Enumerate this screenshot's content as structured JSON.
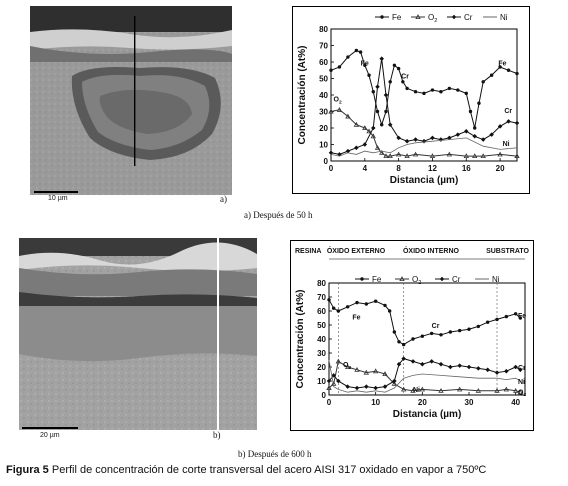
{
  "figure": {
    "number_label": "Figura 5",
    "caption": "Perfil de concentración de corte transversal del acero AISI 317 oxidado en vapor a 750ºC"
  },
  "panel_a": {
    "micrograph": {
      "scale_label": "10 µm",
      "letter": "a)"
    },
    "subcaption": "a) Después de 50 h"
  },
  "panel_b": {
    "micrograph": {
      "scale_label": "20 µm",
      "letter": "b)"
    },
    "subcaption": "b) Después de 600 h",
    "zones": [
      "RESINA",
      "ÓXIDO EXTERNO",
      "ÓXIDO INTERNO",
      "SUBSTRATO"
    ]
  },
  "chart_data": [
    {
      "type": "line",
      "title": "",
      "xlabel": "Distancia (µm)",
      "ylabel": "Concentración (At%)",
      "xlim": [
        0,
        22
      ],
      "ylim": [
        0,
        80
      ],
      "xticks": [
        0,
        4,
        8,
        12,
        16,
        20
      ],
      "yticks": [
        0,
        10,
        20,
        30,
        40,
        50,
        60,
        70,
        80
      ],
      "legend": [
        "Fe",
        "O2",
        "Cr",
        "Ni"
      ],
      "legend_position": "top",
      "grid": false,
      "series": [
        {
          "name": "Fe",
          "color": "#111111",
          "x": [
            0,
            1,
            2,
            3,
            3.5,
            4,
            4.5,
            5,
            5.5,
            6,
            6.5,
            7,
            7.5,
            8,
            8.5,
            9,
            10,
            11,
            12,
            13,
            14,
            15,
            16,
            16.5,
            17,
            17.5,
            18,
            19,
            20,
            21,
            22
          ],
          "values": [
            55,
            57,
            63,
            67,
            66,
            58,
            52,
            42,
            30,
            22,
            30,
            48,
            58,
            56,
            48,
            44,
            42,
            41,
            43,
            42,
            44,
            43,
            41,
            30,
            20,
            35,
            48,
            52,
            57,
            55,
            53
          ]
        },
        {
          "name": "O2",
          "color": "#333333",
          "x": [
            0,
            1,
            2,
            3,
            4,
            4.5,
            5,
            5.5,
            6,
            6.5,
            7,
            8,
            9,
            10,
            12,
            14,
            16,
            17,
            18,
            20,
            22
          ],
          "values": [
            30,
            31,
            27,
            22,
            20,
            18,
            15,
            8,
            5,
            3,
            3,
            4,
            3,
            4,
            3,
            4,
            3,
            3,
            3,
            4,
            3
          ]
        },
        {
          "name": "Cr",
          "color": "#111111",
          "x": [
            0,
            1,
            2,
            3,
            4,
            5,
            5.5,
            6,
            6.5,
            7,
            8,
            9,
            10,
            11,
            12,
            13,
            14,
            15,
            16,
            17,
            18,
            19,
            20,
            21,
            22
          ],
          "values": [
            5,
            4,
            6,
            8,
            10,
            20,
            45,
            62,
            40,
            22,
            14,
            12,
            13,
            12,
            14,
            13,
            14,
            16,
            18,
            15,
            13,
            16,
            21,
            24,
            23
          ]
        },
        {
          "name": "Ni",
          "color": "#666666",
          "x": [
            0,
            1,
            2,
            3,
            4,
            5,
            6,
            7,
            8,
            9,
            10,
            12,
            14,
            16,
            18,
            20,
            22
          ],
          "values": [
            4,
            3,
            5,
            4,
            6,
            5,
            6,
            5,
            8,
            10,
            11,
            12,
            13,
            14,
            9,
            7,
            8
          ]
        }
      ],
      "annotations": [
        "Fe",
        "Cr",
        "Fe",
        "O2",
        "Cr",
        "Ni"
      ]
    },
    {
      "type": "line",
      "title": "",
      "xlabel": "Distancia (µm)",
      "ylabel": "Concentración (At%)",
      "xlim": [
        0,
        42
      ],
      "ylim": [
        0,
        80
      ],
      "xticks": [
        0,
        10,
        20,
        30,
        40
      ],
      "yticks": [
        0,
        10,
        20,
        30,
        40,
        50,
        60,
        70,
        80
      ],
      "legend": [
        "Fe",
        "O2",
        "Cr",
        "Ni"
      ],
      "legend_position": "top",
      "grid": false,
      "zone_boundaries": [
        2,
        16,
        36
      ],
      "series": [
        {
          "name": "Fe",
          "color": "#111111",
          "x": [
            0,
            1,
            2,
            4,
            6,
            8,
            10,
            12,
            13,
            14,
            15,
            16,
            18,
            20,
            22,
            24,
            26,
            28,
            30,
            32,
            34,
            36,
            38,
            40,
            41
          ],
          "values": [
            68,
            62,
            60,
            63,
            66,
            65,
            67,
            64,
            60,
            45,
            38,
            36,
            40,
            42,
            44,
            43,
            45,
            46,
            47,
            49,
            52,
            54,
            56,
            58,
            55
          ]
        },
        {
          "name": "O2",
          "color": "#333333",
          "x": [
            0,
            1,
            2,
            4,
            6,
            8,
            10,
            12,
            14,
            16,
            18,
            20,
            24,
            28,
            32,
            36,
            38,
            40,
            41
          ],
          "values": [
            5,
            8,
            24,
            20,
            18,
            16,
            17,
            15,
            8,
            4,
            3,
            4,
            3,
            4,
            3,
            3,
            4,
            3,
            2
          ]
        },
        {
          "name": "Cr",
          "color": "#111111",
          "x": [
            0,
            1,
            2,
            4,
            6,
            8,
            10,
            12,
            14,
            15,
            16,
            18,
            20,
            22,
            24,
            26,
            28,
            30,
            32,
            34,
            36,
            38,
            40,
            41
          ],
          "values": [
            10,
            14,
            10,
            6,
            5,
            6,
            5,
            6,
            10,
            22,
            26,
            24,
            22,
            24,
            22,
            20,
            21,
            20,
            19,
            18,
            16,
            17,
            20,
            18
          ]
        },
        {
          "name": "Ni",
          "color": "#666666",
          "x": [
            0,
            1,
            2,
            4,
            6,
            8,
            10,
            12,
            14,
            16,
            18,
            20,
            24,
            28,
            32,
            36,
            38,
            40,
            41
          ],
          "values": [
            25,
            6,
            4,
            2,
            3,
            2,
            3,
            2,
            5,
            12,
            14,
            15,
            14,
            13,
            12,
            12,
            11,
            12,
            10
          ]
        }
      ],
      "annotations": [
        "Fe",
        "Cr",
        "Fe",
        "O2",
        "Ni",
        "Cr",
        "Ni",
        "O2"
      ]
    }
  ]
}
